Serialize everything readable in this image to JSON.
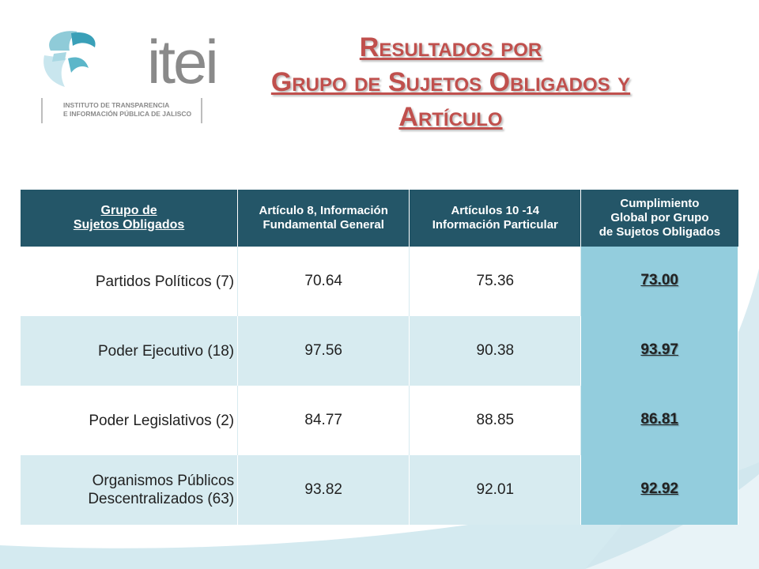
{
  "logo": {
    "word": "itei",
    "subtitle_line1": "INSTITUTO DE TRANSPARENCIA",
    "subtitle_line2": "E INFORMACIÓN PÚBLICA DE JALISCO"
  },
  "title": {
    "line1": "Resultados por",
    "line2": "Grupo de Sujetos Obligados y",
    "line3": "Artículo"
  },
  "table": {
    "headers": {
      "group": [
        "Grupo de",
        "Sujetos Obligados"
      ],
      "art8": [
        "Artículo 8, Información",
        "Fundamental General"
      ],
      "art10": [
        "Artículos 10 -14",
        "Información Particular"
      ],
      "global": [
        "Cumplimiento",
        "Global por Grupo",
        "de Sujetos Obligados"
      ]
    },
    "rows": [
      {
        "name": [
          "Partidos Políticos (7)"
        ],
        "art8": "70.64",
        "art10": "75.36",
        "global": "73.00"
      },
      {
        "name": [
          "Poder Ejecutivo (18)"
        ],
        "art8": "97.56",
        "art10": "90.38",
        "global": "93.97"
      },
      {
        "name": [
          "Poder Legislativos (2)"
        ],
        "art8": "84.77",
        "art10": "88.85",
        "global": "86.81"
      },
      {
        "name": [
          "Organismos Públicos",
          "Descentralizados (63)"
        ],
        "art8": "93.82",
        "art10": "92.01",
        "global": "92.92"
      }
    ]
  },
  "colors": {
    "header_bg": "#245668",
    "title": "#c0504d",
    "row_alt": "#d7ebf0",
    "global_col": "#93cddd",
    "wave": "#d4eaf0"
  }
}
